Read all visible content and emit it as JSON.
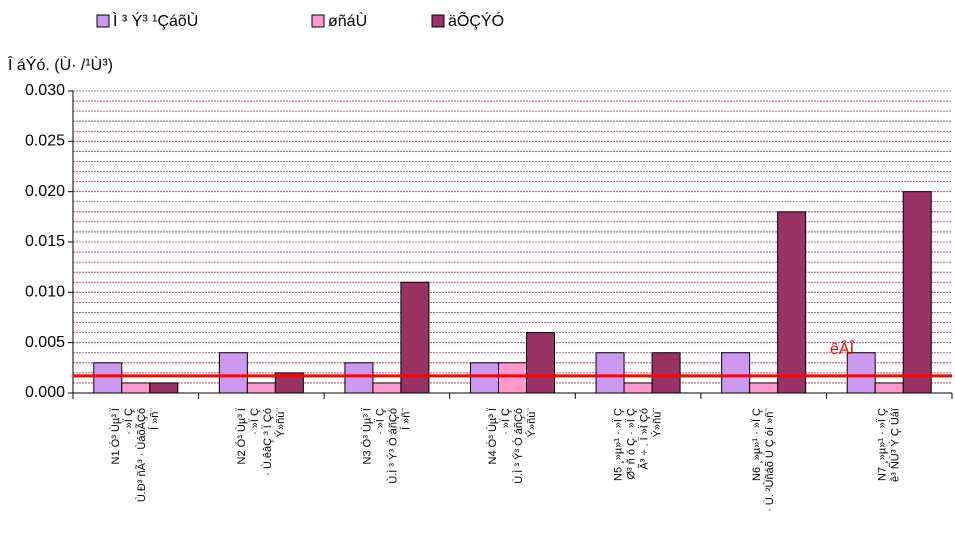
{
  "chart_data": {
    "type": "bar",
    "y_label": "Î áÝó. (Ù· /¹Ù³)",
    "categories": [
      [
        "N1 Ó³ Ùµ³ Ï",
        "· »Ï Ç",
        "Ù.Ð³ ñÃ³ · ÙáõÃÇó",
        "Í »ñ¨"
      ],
      [
        "N2 Ó³ Ùµ³ Ï",
        "· »Ï Ç",
        "· Ù.êâÇ ³ Ï Çó",
        "Ý»ñù¨"
      ],
      [
        "N3 Ó³ Ùµ³ Ï",
        "· »Ï Ç",
        "Ù.Ì ³ Ý³ Ó áñÇó",
        "Í »ñ¨"
      ],
      [
        "N4 Ó³ Ùµ³ Ï",
        "· »Ï Ç",
        "Ù.Ì ³ Ý³ Ó áñÇó",
        "Ý»ñù¨"
      ],
      [
        "N5 ¸»µ»¹ · »Ï Ç",
        "Ø³ ñ ó Ç · »Ï Ç",
        "Ã³ ÷ . Ï »Ï Çó",
        "Ý»ñù¨"
      ],
      [
        "N6 ¸»µ»¹ · »Ï Ç",
        "· Ù. ²Ûñáõ Ù Ç óí »ñ¨"
      ],
      [
        "N7 ¸»µ»¹ · »Ï Ç",
        "ê³ ÑÙ³ Ý Ç Ùáï"
      ]
    ],
    "series": [
      {
        "name": "Ì ³ Ý³ ¹ÇáõÙ",
        "color": "#cc99ee",
        "values": [
          0.003,
          0.004,
          0.003,
          0.003,
          0.004,
          0.004,
          0.004
        ]
      },
      {
        "name": "øñáÙ",
        "color": "#ff99cc",
        "values": [
          0.001,
          0.001,
          0.001,
          0.003,
          0.001,
          0.001,
          0.001
        ]
      },
      {
        "name": "äÕÇÝÓ",
        "color": "#993366",
        "values": [
          0.001,
          0.002,
          0.011,
          0.006,
          0.004,
          0.018,
          0.02
        ]
      }
    ],
    "ylim": [
      0,
      0.03
    ],
    "yticks": [
      {
        "value": 0,
        "label": "0.000"
      },
      {
        "value": 0.005,
        "label": "0.005"
      },
      {
        "value": 0.01,
        "label": "0.010"
      },
      {
        "value": 0.015,
        "label": "0.015"
      },
      {
        "value": 0.02,
        "label": "0.020"
      },
      {
        "value": 0.025,
        "label": "0.025"
      },
      {
        "value": 0.03,
        "label": "0.030"
      }
    ],
    "minor_yticks": [
      0.001,
      0.002,
      0.003,
      0.004,
      0.006,
      0.007,
      0.008,
      0.009,
      0.011,
      0.012,
      0.013,
      0.014,
      0.016,
      0.017,
      0.018,
      0.019,
      0.021,
      0.022,
      0.023,
      0.024,
      0.026,
      0.027,
      0.028,
      0.029
    ],
    "grid": true,
    "grid_color": "#993366",
    "reference_line": {
      "value": 0.0017,
      "label": "êÂÎ",
      "color": "#ff0000"
    }
  }
}
